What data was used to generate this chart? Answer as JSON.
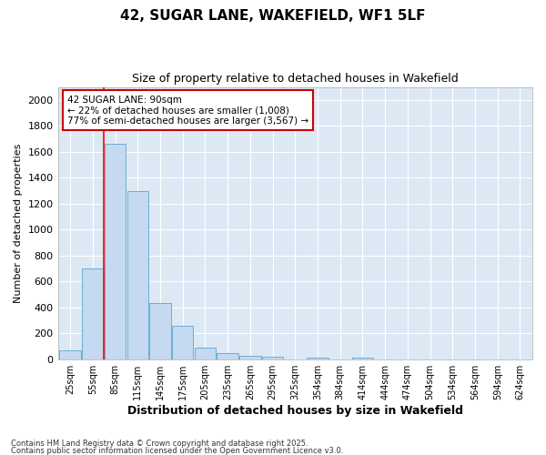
{
  "title": "42, SUGAR LANE, WAKEFIELD, WF1 5LF",
  "subtitle": "Size of property relative to detached houses in Wakefield",
  "xlabel": "Distribution of detached houses by size in Wakefield",
  "ylabel": "Number of detached properties",
  "categories": [
    "25sqm",
    "55sqm",
    "85sqm",
    "115sqm",
    "145sqm",
    "175sqm",
    "205sqm",
    "235sqm",
    "265sqm",
    "295sqm",
    "325sqm",
    "354sqm",
    "384sqm",
    "414sqm",
    "444sqm",
    "474sqm",
    "504sqm",
    "534sqm",
    "564sqm",
    "594sqm",
    "624sqm"
  ],
  "values": [
    65,
    700,
    1660,
    1300,
    435,
    255,
    90,
    50,
    25,
    20,
    0,
    10,
    0,
    10,
    0,
    0,
    0,
    0,
    0,
    0,
    0
  ],
  "bar_color": "#c5d9f0",
  "bar_edge_color": "#6baed6",
  "fig_background_color": "#ffffff",
  "ax_background_color": "#dce9f5",
  "grid_color": "#ffffff",
  "red_line_x": 1.5,
  "annotation_title": "42 SUGAR LANE: 90sqm",
  "annotation_line1": "← 22% of detached houses are smaller (1,008)",
  "annotation_line2": "77% of semi-detached houses are larger (3,567) →",
  "annotation_box_facecolor": "#ffffff",
  "annotation_border_color": "#cc0000",
  "footer_line1": "Contains HM Land Registry data © Crown copyright and database right 2025.",
  "footer_line2": "Contains public sector information licensed under the Open Government Licence v3.0.",
  "ylim": [
    0,
    2100
  ],
  "yticks": [
    0,
    200,
    400,
    600,
    800,
    1000,
    1200,
    1400,
    1600,
    1800,
    2000
  ]
}
